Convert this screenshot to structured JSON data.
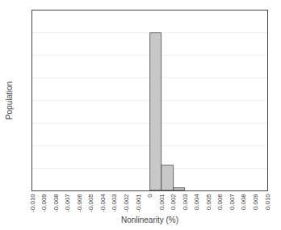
{
  "chart_data": {
    "type": "histogram",
    "xlabel": "Nonlinearity (%)",
    "ylabel": "Population",
    "bins": [
      0,
      0.001,
      0.002,
      0.003
    ],
    "values": [
      14,
      2.2,
      0.18
    ],
    "color": "#c8c8c8",
    "xlim": [
      -0.01,
      0.01
    ],
    "xticks": [
      {
        "value": -0.01,
        "label": "-0.010"
      },
      -0.009,
      -0.008,
      -0.007,
      -0.006,
      -0.005,
      -0.004,
      -0.003,
      -0.002,
      -0.001,
      0,
      0.001,
      0.002,
      0.003,
      0.004,
      0.005,
      0.006,
      0.007,
      0.008,
      0.009,
      {
        "value": 0.01,
        "label": "0.010"
      }
    ],
    "ylim": [
      0,
      16
    ],
    "yticks": [
      0,
      2,
      4,
      6,
      8,
      10,
      12,
      14,
      16
    ],
    "grid": true,
    "tick_labels": "x"
  }
}
